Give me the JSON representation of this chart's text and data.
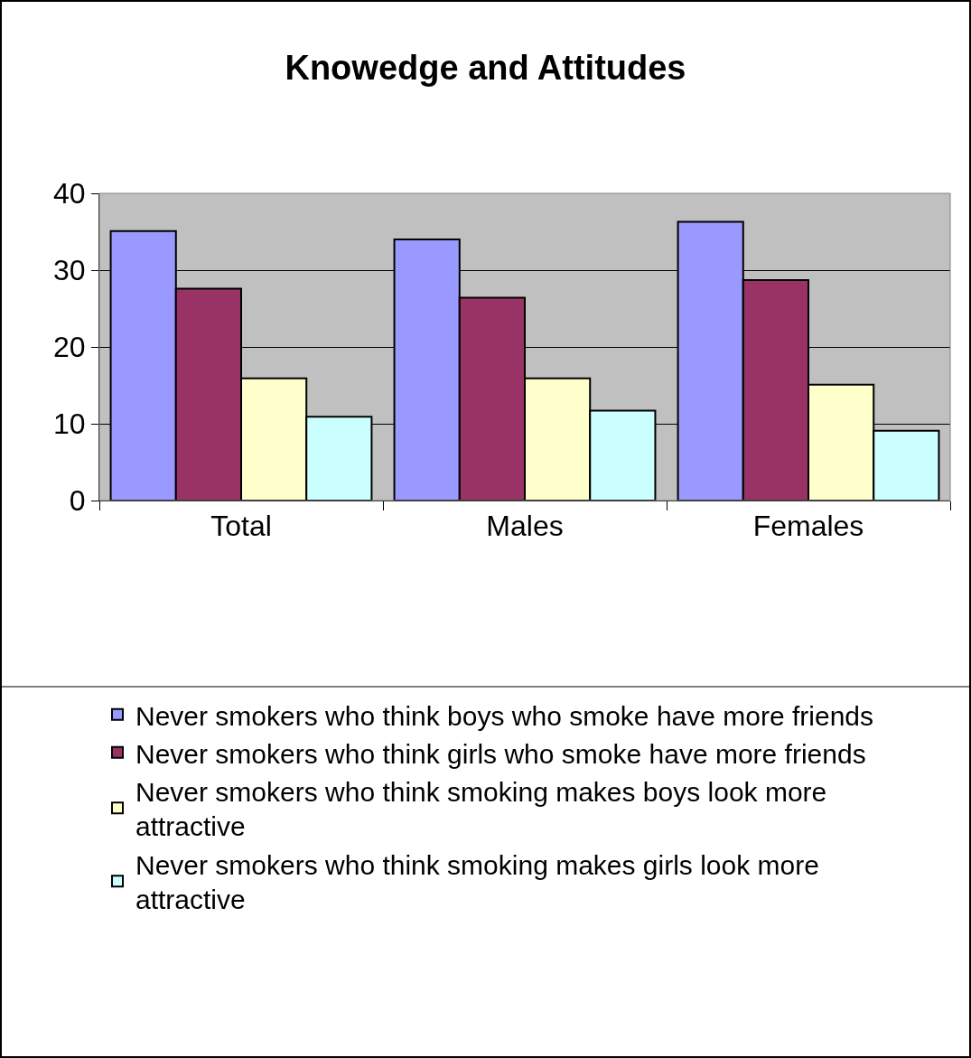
{
  "chart_data": {
    "type": "bar",
    "title": "Knowedge and Attitudes",
    "categories": [
      "Total",
      "Males",
      "Females"
    ],
    "series": [
      {
        "name": "Never smokers who think boys who smoke have more friends",
        "color": "#9999ff",
        "values": [
          35.1,
          34.0,
          36.3
        ]
      },
      {
        "name": "Never smokers who think girls who smoke have more friends",
        "color": "#993366",
        "values": [
          27.6,
          26.4,
          28.7
        ]
      },
      {
        "name": "Never smokers who think smoking makes boys look more attractive",
        "color": "#ffffcc",
        "values": [
          15.9,
          15.9,
          15.1
        ]
      },
      {
        "name": "Never smokers who think smoking makes girls look more attractive",
        "color": "#ccffff",
        "values": [
          10.9,
          11.7,
          9.1
        ]
      }
    ],
    "ylim": [
      0,
      40
    ],
    "yticks": [
      0,
      10,
      20,
      30,
      40
    ],
    "grid": "y",
    "legend": "bottom"
  }
}
